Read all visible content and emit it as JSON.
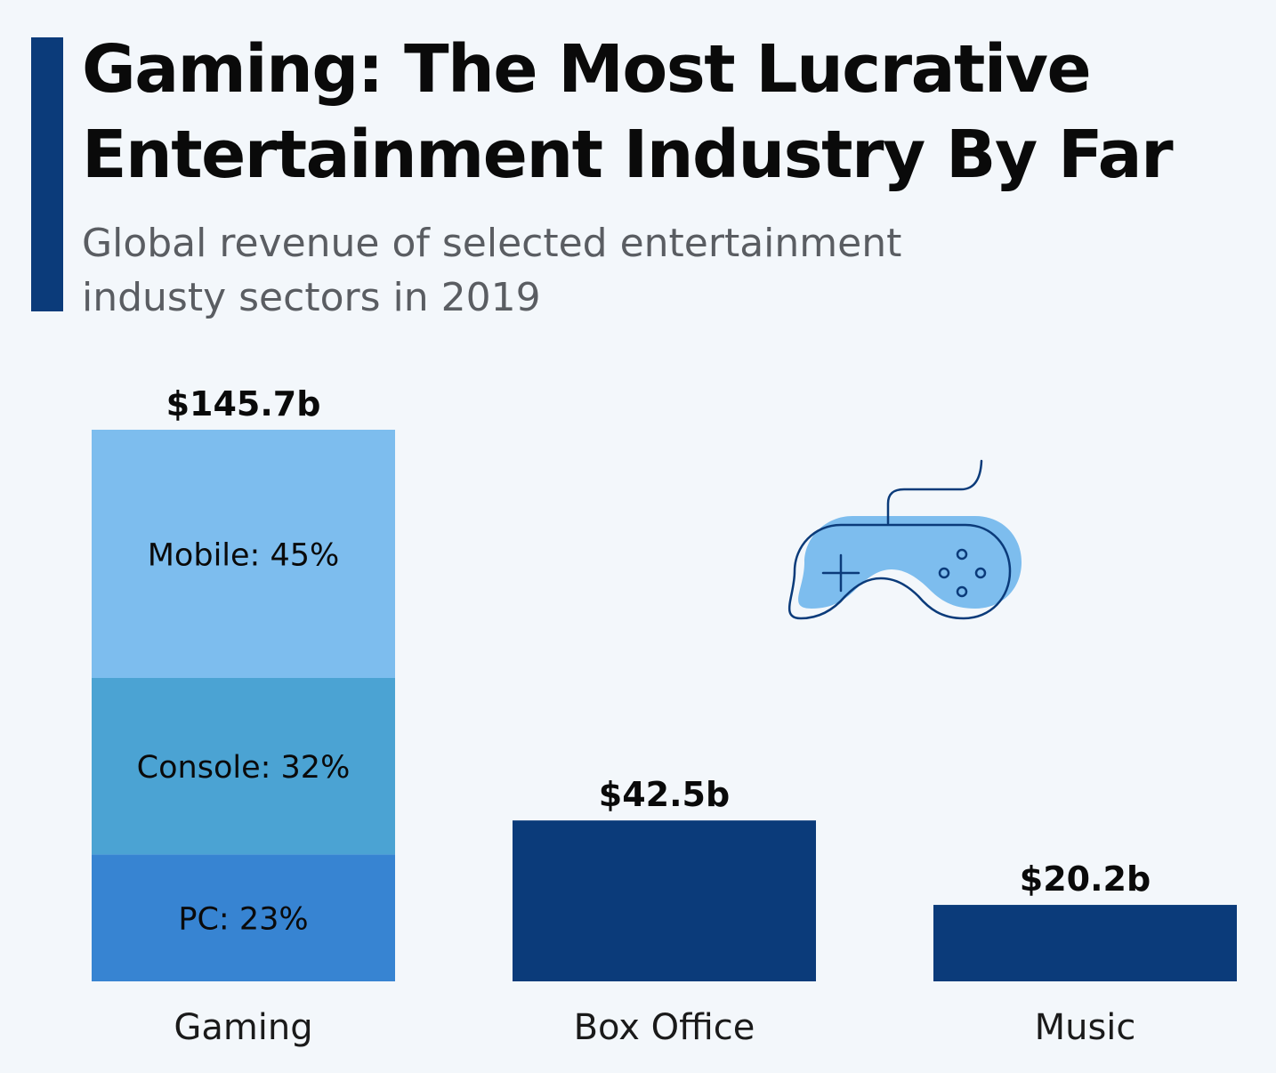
{
  "title_line1": "Gaming: The Most Lucrative",
  "title_line2": "Entertainment Industry By Far",
  "subtitle_line1": "Global revenue of selected entertainment",
  "subtitle_line2": "industy sectors in 2019",
  "icon": "gamepad-icon",
  "colors": {
    "accent": "#0b3b7a",
    "mobile": "#7dbdee",
    "console": "#4ba3d3",
    "pc": "#3784d2",
    "solid": "#0b3b7a",
    "icon_fill": "#7dbdee",
    "icon_stroke": "#0b3b7a"
  },
  "chart_data": {
    "type": "bar",
    "title": "Gaming: The Most Lucrative Entertainment Industry By Far",
    "subtitle": "Global revenue of selected entertainment industy sectors in 2019",
    "categories": [
      "Gaming",
      "Box Office",
      "Music"
    ],
    "values": [
      145.7,
      42.5,
      20.2
    ],
    "value_labels": [
      "$145.7b",
      "$42.5b",
      "$20.2b"
    ],
    "unit": "billion USD",
    "ylim": [
      0,
      145.7
    ],
    "grid": false,
    "legend": "none",
    "stacked_breakdown": {
      "category": "Gaming",
      "segments": [
        {
          "name": "PC",
          "percent": 23,
          "label": "PC: 23%"
        },
        {
          "name": "Console",
          "percent": 32,
          "label": "Console: 32%"
        },
        {
          "name": "Mobile",
          "percent": 45,
          "label": "Mobile: 45%"
        }
      ]
    }
  }
}
